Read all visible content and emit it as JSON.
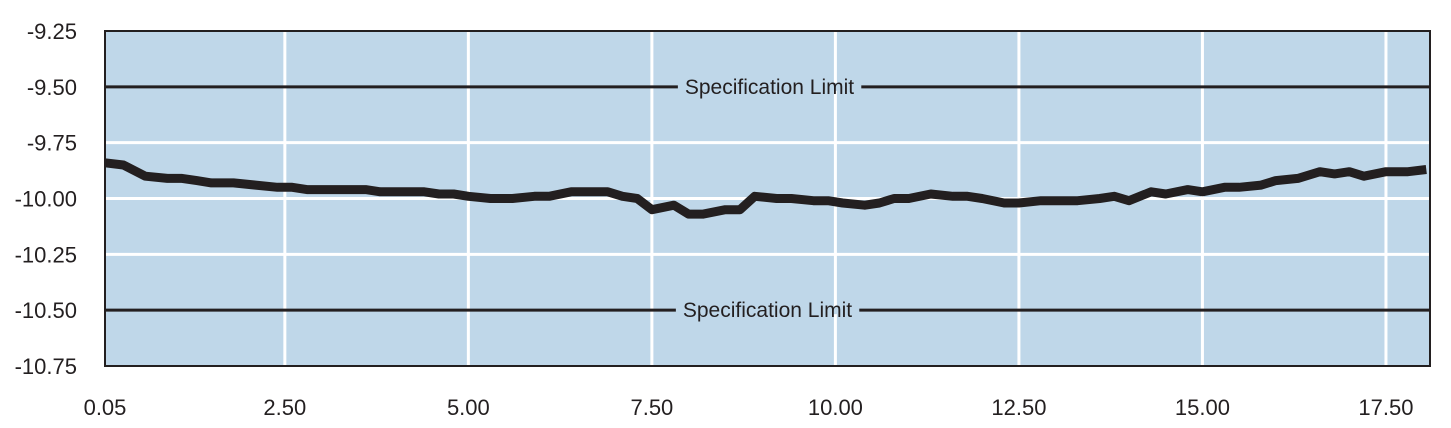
{
  "chart_data": {
    "type": "line",
    "title": "",
    "xlabel": "",
    "ylabel": "",
    "xlim": [
      0.05,
      18.1
    ],
    "ylim": [
      -10.75,
      -9.25
    ],
    "grid": true,
    "plot_background": "#bfd7e9",
    "grid_color": "#ffffff",
    "line_color": "#231f20",
    "x_ticks": [
      {
        "value": 0.05,
        "label": "0.05"
      },
      {
        "value": 2.5,
        "label": "2.50"
      },
      {
        "value": 5.0,
        "label": "5.00"
      },
      {
        "value": 7.5,
        "label": "7.50"
      },
      {
        "value": 10.0,
        "label": "10.00"
      },
      {
        "value": 12.5,
        "label": "12.50"
      },
      {
        "value": 15.0,
        "label": "15.00"
      },
      {
        "value": 17.5,
        "label": "17.50"
      }
    ],
    "y_ticks": [
      {
        "value": -9.25,
        "label": "-9.25"
      },
      {
        "value": -9.5,
        "label": "-9.50"
      },
      {
        "value": -9.75,
        "label": "-9.75"
      },
      {
        "value": -10.0,
        "label": "-10.00"
      },
      {
        "value": -10.25,
        "label": "-10.25"
      },
      {
        "value": -10.5,
        "label": "-10.50"
      },
      {
        "value": -10.75,
        "label": "-10.75"
      }
    ],
    "reference_lines": [
      {
        "value": -9.5,
        "label": "Specification Limit"
      },
      {
        "value": -10.5,
        "label": "Specification Limit"
      }
    ],
    "series": [
      {
        "x": [
          0.05,
          0.3,
          0.6,
          0.9,
          1.1,
          1.3,
          1.5,
          1.8,
          2.1,
          2.4,
          2.6,
          2.8,
          3.1,
          3.4,
          3.6,
          3.8,
          4.1,
          4.4,
          4.6,
          4.8,
          5.0,
          5.3,
          5.6,
          5.9,
          6.1,
          6.4,
          6.6,
          6.9,
          7.1,
          7.3,
          7.5,
          7.8,
          8.0,
          8.2,
          8.5,
          8.7,
          8.9,
          9.2,
          9.4,
          9.7,
          9.9,
          10.1,
          10.4,
          10.6,
          10.8,
          11.0,
          11.3,
          11.6,
          11.8,
          12.0,
          12.3,
          12.5,
          12.8,
          13.0,
          13.3,
          13.6,
          13.8,
          14.0,
          14.3,
          14.5,
          14.8,
          15.0,
          15.3,
          15.5,
          15.8,
          16.0,
          16.3,
          16.6,
          16.8,
          17.0,
          17.2,
          17.5,
          17.8,
          18.05
        ],
        "y": [
          -9.84,
          -9.85,
          -9.9,
          -9.91,
          -9.91,
          -9.92,
          -9.93,
          -9.93,
          -9.94,
          -9.95,
          -9.95,
          -9.96,
          -9.96,
          -9.96,
          -9.96,
          -9.97,
          -9.97,
          -9.97,
          -9.98,
          -9.98,
          -9.99,
          -10.0,
          -10.0,
          -9.99,
          -9.99,
          -9.97,
          -9.97,
          -9.97,
          -9.99,
          -10.0,
          -10.05,
          -10.03,
          -10.07,
          -10.07,
          -10.05,
          -10.05,
          -9.99,
          -10.0,
          -10.0,
          -10.01,
          -10.01,
          -10.02,
          -10.03,
          -10.02,
          -10.0,
          -10.0,
          -9.98,
          -9.99,
          -9.99,
          -10.0,
          -10.02,
          -10.02,
          -10.01,
          -10.01,
          -10.01,
          -10.0,
          -9.99,
          -10.01,
          -9.97,
          -9.98,
          -9.96,
          -9.97,
          -9.95,
          -9.95,
          -9.94,
          -9.92,
          -9.91,
          -9.88,
          -9.89,
          -9.88,
          -9.9,
          -9.88,
          -9.88,
          -9.87
        ]
      }
    ]
  }
}
